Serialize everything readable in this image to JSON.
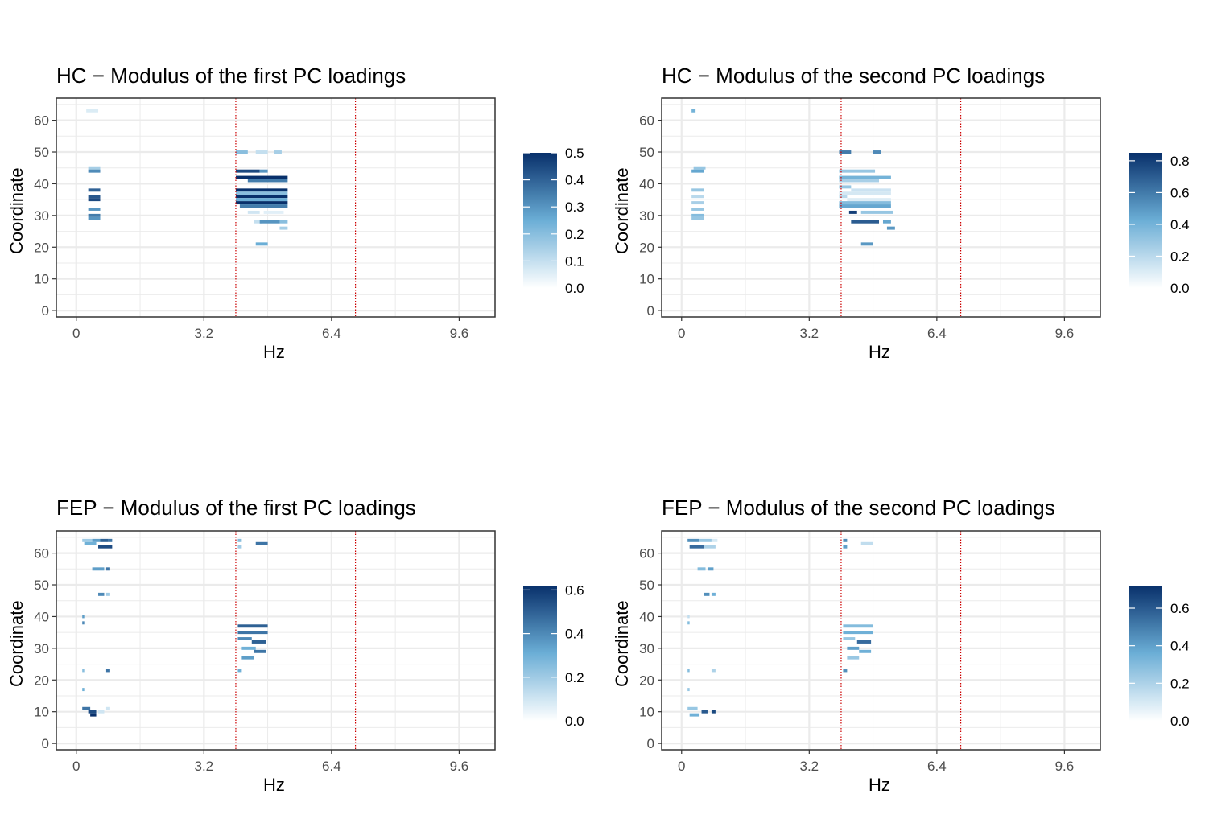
{
  "colors": {
    "scale_low": "#ffffff",
    "scale_mid": "#6baed6",
    "scale_high": "#08306b",
    "reference_line": "#cc0000",
    "gridline": "#ebebeb",
    "panel_border": "#333333",
    "tick_text": "#4d4d4d"
  },
  "chart_data": [
    {
      "type": "heatmap",
      "title": "HC − Modulus of the first PC loadings",
      "xlabel": "Hz",
      "ylabel": "Coordinate",
      "x_ticks": [
        "0",
        "3.2",
        "6.4",
        "9.6"
      ],
      "y_ticks": [
        "0",
        "10",
        "20",
        "30",
        "40",
        "50",
        "60"
      ],
      "xlim": [
        -0.5,
        10.5
      ],
      "ylim": [
        -2,
        67
      ],
      "grid": true,
      "reference_lines_x": [
        4.0,
        7.0
      ],
      "legend": {
        "position": "right",
        "ticks": [
          "0.0",
          "0.1",
          "0.2",
          "0.3",
          "0.4",
          "0.5"
        ],
        "min": 0,
        "max": 0.5
      },
      "cells": [
        [
          0.25,
          63,
          0.3,
          0.06
        ],
        [
          0.3,
          45,
          0.3,
          0.15
        ],
        [
          0.3,
          44,
          0.3,
          0.32
        ],
        [
          0.3,
          38,
          0.3,
          0.4
        ],
        [
          0.3,
          36,
          0.3,
          0.42
        ],
        [
          0.3,
          35,
          0.3,
          0.45
        ],
        [
          0.3,
          32,
          0.3,
          0.3
        ],
        [
          0.3,
          30,
          0.3,
          0.35
        ],
        [
          0.3,
          29,
          0.3,
          0.3
        ],
        [
          4.0,
          50,
          0.3,
          0.2
        ],
        [
          4.5,
          50,
          0.3,
          0.1
        ],
        [
          4.95,
          50,
          0.2,
          0.15
        ],
        [
          4.0,
          44,
          0.6,
          0.45
        ],
        [
          4.6,
          44,
          0.2,
          0.3
        ],
        [
          4.0,
          42,
          1.3,
          0.5
        ],
        [
          4.3,
          41,
          1.0,
          0.35
        ],
        [
          4.0,
          38,
          1.3,
          0.5
        ],
        [
          4.0,
          37,
          1.3,
          0.2
        ],
        [
          4.0,
          36,
          1.3,
          0.5
        ],
        [
          4.0,
          35,
          1.3,
          0.25
        ],
        [
          4.0,
          34,
          1.3,
          0.5
        ],
        [
          4.1,
          33,
          1.2,
          0.35
        ],
        [
          4.3,
          31,
          0.3,
          0.08
        ],
        [
          4.7,
          31,
          0.5,
          0.05
        ],
        [
          4.45,
          28,
          0.2,
          0.1
        ],
        [
          4.6,
          28,
          0.5,
          0.3
        ],
        [
          5.1,
          28,
          0.2,
          0.2
        ],
        [
          5.1,
          26,
          0.2,
          0.15
        ],
        [
          4.5,
          21,
          0.3,
          0.25
        ]
      ]
    },
    {
      "type": "heatmap",
      "title": "HC − Modulus of the second PC loadings",
      "xlabel": "Hz",
      "ylabel": "Coordinate",
      "x_ticks": [
        "0",
        "3.2",
        "6.4",
        "9.6"
      ],
      "y_ticks": [
        "0",
        "10",
        "20",
        "30",
        "40",
        "50",
        "60"
      ],
      "xlim": [
        -0.5,
        10.5
      ],
      "ylim": [
        -2,
        67
      ],
      "grid": true,
      "reference_lines_x": [
        4.0,
        7.0
      ],
      "legend": {
        "position": "right",
        "ticks": [
          "0.0",
          "0.2",
          "0.4",
          "0.6",
          "0.8"
        ],
        "min": 0,
        "max": 0.85
      },
      "cells": [
        [
          0.25,
          63,
          0.1,
          0.4
        ],
        [
          0.3,
          45,
          0.3,
          0.3
        ],
        [
          0.25,
          44,
          0.3,
          0.45
        ],
        [
          0.25,
          38,
          0.3,
          0.3
        ],
        [
          0.25,
          36,
          0.3,
          0.2
        ],
        [
          0.25,
          34,
          0.3,
          0.25
        ],
        [
          0.25,
          32,
          0.3,
          0.3
        ],
        [
          0.25,
          30,
          0.3,
          0.35
        ],
        [
          0.25,
          29,
          0.3,
          0.3
        ],
        [
          3.95,
          50,
          0.3,
          0.6
        ],
        [
          4.8,
          50,
          0.2,
          0.55
        ],
        [
          3.95,
          44,
          0.9,
          0.3
        ],
        [
          3.95,
          42,
          1.3,
          0.4
        ],
        [
          3.95,
          41,
          1.0,
          0.25
        ],
        [
          3.95,
          39,
          0.3,
          0.3
        ],
        [
          4.25,
          38,
          1.0,
          0.15
        ],
        [
          3.95,
          37,
          1.3,
          0.12
        ],
        [
          3.95,
          36,
          0.2,
          0.2
        ],
        [
          4.15,
          35,
          1.1,
          0.1
        ],
        [
          3.95,
          34,
          1.3,
          0.35
        ],
        [
          3.95,
          33,
          1.3,
          0.45
        ],
        [
          4.2,
          31,
          0.2,
          0.8
        ],
        [
          4.5,
          31,
          0.8,
          0.3
        ],
        [
          4.25,
          28,
          0.7,
          0.7
        ],
        [
          5.05,
          28,
          0.2,
          0.45
        ],
        [
          5.15,
          26,
          0.2,
          0.5
        ],
        [
          4.5,
          21,
          0.3,
          0.5
        ]
      ]
    },
    {
      "type": "heatmap",
      "title": "FEP − Modulus of the first PC loadings",
      "xlabel": "Hz",
      "ylabel": "Coordinate",
      "x_ticks": [
        "0",
        "3.2",
        "6.4",
        "9.6"
      ],
      "y_ticks": [
        "0",
        "10",
        "20",
        "30",
        "40",
        "50",
        "60"
      ],
      "xlim": [
        -0.5,
        10.5
      ],
      "ylim": [
        -2,
        67
      ],
      "grid": true,
      "reference_lines_x": [
        4.0,
        7.0
      ],
      "legend": {
        "position": "right",
        "ticks": [
          "0.0",
          "0.2",
          "0.4",
          "0.6"
        ],
        "min": 0,
        "max": 0.62
      },
      "cells": [
        [
          0.15,
          64,
          0.25,
          0.2
        ],
        [
          0.4,
          64,
          0.2,
          0.35
        ],
        [
          0.6,
          64,
          0.2,
          0.5
        ],
        [
          0.8,
          64,
          0.1,
          0.45
        ],
        [
          0.2,
          63,
          0.3,
          0.3
        ],
        [
          0.55,
          62,
          0.35,
          0.55
        ],
        [
          0.4,
          55,
          0.3,
          0.35
        ],
        [
          0.75,
          55,
          0.1,
          0.45
        ],
        [
          0.55,
          47,
          0.15,
          0.4
        ],
        [
          0.75,
          47,
          0.1,
          0.2
        ],
        [
          0.15,
          40,
          0.05,
          0.35
        ],
        [
          0.15,
          38,
          0.05,
          0.4
        ],
        [
          0.15,
          23,
          0.05,
          0.25
        ],
        [
          0.75,
          23,
          0.1,
          0.45
        ],
        [
          0.15,
          17,
          0.05,
          0.3
        ],
        [
          0.15,
          11,
          0.2,
          0.45
        ],
        [
          0.3,
          10,
          0.2,
          0.55
        ],
        [
          0.35,
          9,
          0.15,
          0.65
        ],
        [
          0.55,
          10,
          0.15,
          0.1
        ],
        [
          0.75,
          11,
          0.1,
          0.1
        ],
        [
          4.05,
          64,
          0.1,
          0.25
        ],
        [
          4.05,
          62,
          0.1,
          0.2
        ],
        [
          4.5,
          63,
          0.3,
          0.45
        ],
        [
          4.05,
          37,
          0.75,
          0.5
        ],
        [
          4.05,
          35,
          0.75,
          0.45
        ],
        [
          4.05,
          33,
          0.35,
          0.4
        ],
        [
          4.4,
          32,
          0.35,
          0.5
        ],
        [
          4.15,
          30,
          0.35,
          0.3
        ],
        [
          4.45,
          29,
          0.3,
          0.45
        ],
        [
          4.15,
          27,
          0.3,
          0.35
        ],
        [
          4.05,
          23,
          0.1,
          0.3
        ]
      ]
    },
    {
      "type": "heatmap",
      "title": "FEP − Modulus of the second PC loadings",
      "xlabel": "Hz",
      "ylabel": "Coordinate",
      "x_ticks": [
        "0",
        "3.2",
        "6.4",
        "9.6"
      ],
      "y_ticks": [
        "0",
        "10",
        "20",
        "30",
        "40",
        "50",
        "60"
      ],
      "xlim": [
        -0.5,
        10.5
      ],
      "ylim": [
        -2,
        67
      ],
      "grid": true,
      "reference_lines_x": [
        4.0,
        7.0
      ],
      "legend": {
        "position": "right",
        "ticks": [
          "0.0",
          "0.2",
          "0.4",
          "0.6"
        ],
        "min": 0,
        "max": 0.72
      },
      "cells": [
        [
          0.15,
          64,
          0.3,
          0.45
        ],
        [
          0.45,
          64,
          0.3,
          0.25
        ],
        [
          0.75,
          64,
          0.15,
          0.1
        ],
        [
          0.2,
          62,
          0.35,
          0.55
        ],
        [
          0.55,
          62,
          0.3,
          0.2
        ],
        [
          0.4,
          55,
          0.2,
          0.3
        ],
        [
          0.65,
          55,
          0.15,
          0.4
        ],
        [
          0.55,
          47,
          0.15,
          0.45
        ],
        [
          0.75,
          47,
          0.1,
          0.35
        ],
        [
          0.15,
          40,
          0.05,
          0.15
        ],
        [
          0.15,
          38,
          0.05,
          0.3
        ],
        [
          0.15,
          23,
          0.05,
          0.3
        ],
        [
          0.75,
          23,
          0.1,
          0.2
        ],
        [
          0.15,
          17,
          0.05,
          0.25
        ],
        [
          0.15,
          11,
          0.25,
          0.25
        ],
        [
          0.2,
          9,
          0.25,
          0.35
        ],
        [
          0.5,
          10,
          0.15,
          0.6
        ],
        [
          0.75,
          10,
          0.1,
          0.65
        ],
        [
          4.05,
          64,
          0.1,
          0.45
        ],
        [
          4.05,
          62,
          0.1,
          0.4
        ],
        [
          4.5,
          63,
          0.3,
          0.15
        ],
        [
          4.05,
          37,
          0.75,
          0.3
        ],
        [
          4.05,
          35,
          0.75,
          0.35
        ],
        [
          4.05,
          33,
          0.3,
          0.25
        ],
        [
          4.4,
          32,
          0.35,
          0.55
        ],
        [
          4.15,
          30,
          0.3,
          0.4
        ],
        [
          4.45,
          29,
          0.3,
          0.35
        ],
        [
          4.15,
          27,
          0.3,
          0.25
        ],
        [
          4.05,
          23,
          0.1,
          0.45
        ]
      ]
    }
  ]
}
